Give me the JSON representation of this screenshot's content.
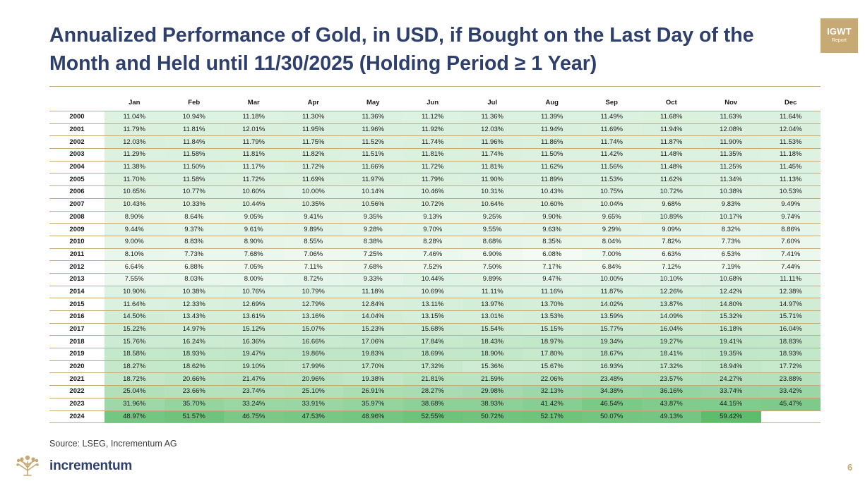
{
  "header": {
    "title": "Annualized Performance of Gold, in USD, if Bought on the Last Day of the Month and Held until 11/30/2025 (Holding Period ≥ 1 Year)",
    "badge_main": "IGWT",
    "badge_sub": "Report"
  },
  "footer": {
    "source": "Source: LSEG, Incrementum AG",
    "brand": "incrementum",
    "page_number": "6"
  },
  "colors": {
    "accent_gold": "#c6a973",
    "title_navy": "#2e3f6b",
    "scale_low": "#f4fbf5",
    "scale_high": "#5cbd6c"
  },
  "chart_data": {
    "type": "heatmap",
    "title": "Annualized Performance of Gold, in USD, if Bought on the Last Day of the Month and Held until 11/30/2025 (Holding Period ≥ 1 Year)",
    "columns": [
      "Jan",
      "Feb",
      "Mar",
      "Apr",
      "May",
      "Jun",
      "Jul",
      "Aug",
      "Sep",
      "Oct",
      "Nov",
      "Dec"
    ],
    "rows": [
      {
        "year": "2000",
        "values": [
          "11.04%",
          "10.94%",
          "11.18%",
          "11.30%",
          "11.36%",
          "11.12%",
          "11.36%",
          "11.39%",
          "11.49%",
          "11.68%",
          "11.63%",
          "11.64%"
        ]
      },
      {
        "year": "2001",
        "values": [
          "11.79%",
          "11.81%",
          "12.01%",
          "11.95%",
          "11.96%",
          "11.92%",
          "12.03%",
          "11.94%",
          "11.69%",
          "11.94%",
          "12.08%",
          "12.04%"
        ]
      },
      {
        "year": "2002",
        "values": [
          "12.03%",
          "11.84%",
          "11.79%",
          "11.75%",
          "11.52%",
          "11.74%",
          "11.96%",
          "11.86%",
          "11.74%",
          "11.87%",
          "11.90%",
          "11.53%"
        ]
      },
      {
        "year": "2003",
        "values": [
          "11.29%",
          "11.58%",
          "11.81%",
          "11.82%",
          "11.51%",
          "11.81%",
          "11.74%",
          "11.50%",
          "11.42%",
          "11.48%",
          "11.35%",
          "11.18%"
        ]
      },
      {
        "year": "2004",
        "values": [
          "11.38%",
          "11.50%",
          "11.17%",
          "11.72%",
          "11.66%",
          "11.72%",
          "11.81%",
          "11.62%",
          "11.56%",
          "11.48%",
          "11.25%",
          "11.45%"
        ]
      },
      {
        "year": "2005",
        "values": [
          "11.70%",
          "11.58%",
          "11.72%",
          "11.69%",
          "11.97%",
          "11.79%",
          "11.90%",
          "11.89%",
          "11.53%",
          "11.62%",
          "11.34%",
          "11.13%"
        ]
      },
      {
        "year": "2006",
        "values": [
          "10.65%",
          "10.77%",
          "10.60%",
          "10.00%",
          "10.14%",
          "10.46%",
          "10.31%",
          "10.43%",
          "10.75%",
          "10.72%",
          "10.38%",
          "10.53%"
        ]
      },
      {
        "year": "2007",
        "values": [
          "10.43%",
          "10.33%",
          "10.44%",
          "10.35%",
          "10.56%",
          "10.72%",
          "10.64%",
          "10.60%",
          "10.04%",
          "9.68%",
          "9.83%",
          "9.49%"
        ]
      },
      {
        "year": "2008",
        "values": [
          "8.90%",
          "8.64%",
          "9.05%",
          "9.41%",
          "9.35%",
          "9.13%",
          "9.25%",
          "9.90%",
          "9.65%",
          "10.89%",
          "10.17%",
          "9.74%"
        ]
      },
      {
        "year": "2009",
        "values": [
          "9.44%",
          "9.37%",
          "9.61%",
          "9.89%",
          "9.28%",
          "9.70%",
          "9.55%",
          "9.63%",
          "9.29%",
          "9.09%",
          "8.32%",
          "8.86%"
        ]
      },
      {
        "year": "2010",
        "values": [
          "9.00%",
          "8.83%",
          "8.90%",
          "8.55%",
          "8.38%",
          "8.28%",
          "8.68%",
          "8.35%",
          "8.04%",
          "7.82%",
          "7.73%",
          "7.60%"
        ]
      },
      {
        "year": "2011",
        "values": [
          "8.10%",
          "7.73%",
          "7.68%",
          "7.06%",
          "7.25%",
          "7.46%",
          "6.90%",
          "6.08%",
          "7.00%",
          "6.63%",
          "6.53%",
          "7.41%"
        ]
      },
      {
        "year": "2012",
        "values": [
          "6.64%",
          "6.88%",
          "7.05%",
          "7.11%",
          "7.68%",
          "7.52%",
          "7.50%",
          "7.17%",
          "6.84%",
          "7.12%",
          "7.19%",
          "7.44%"
        ]
      },
      {
        "year": "2013",
        "values": [
          "7.55%",
          "8.03%",
          "8.00%",
          "8.72%",
          "9.33%",
          "10.44%",
          "9.89%",
          "9.47%",
          "10.00%",
          "10.10%",
          "10.68%",
          "11.11%"
        ]
      },
      {
        "year": "2014",
        "values": [
          "10.90%",
          "10.38%",
          "10.76%",
          "10.79%",
          "11.18%",
          "10.69%",
          "11.11%",
          "11.16%",
          "11.87%",
          "12.26%",
          "12.42%",
          "12.38%"
        ]
      },
      {
        "year": "2015",
        "values": [
          "11.64%",
          "12.33%",
          "12.69%",
          "12.79%",
          "12.84%",
          "13.11%",
          "13.97%",
          "13.70%",
          "14.02%",
          "13.87%",
          "14.80%",
          "14.97%"
        ]
      },
      {
        "year": "2016",
        "values": [
          "14.50%",
          "13.43%",
          "13.61%",
          "13.16%",
          "14.04%",
          "13.15%",
          "13.01%",
          "13.53%",
          "13.59%",
          "14.09%",
          "15.32%",
          "15.71%"
        ]
      },
      {
        "year": "2017",
        "values": [
          "15.22%",
          "14.97%",
          "15.12%",
          "15.07%",
          "15.23%",
          "15.68%",
          "15.54%",
          "15.15%",
          "15.77%",
          "16.04%",
          "16.18%",
          "16.04%"
        ]
      },
      {
        "year": "2018",
        "values": [
          "15.76%",
          "16.24%",
          "16.36%",
          "16.66%",
          "17.06%",
          "17.84%",
          "18.43%",
          "18.97%",
          "19.34%",
          "19.27%",
          "19.41%",
          "18.83%"
        ]
      },
      {
        "year": "2019",
        "values": [
          "18.58%",
          "18.93%",
          "19.47%",
          "19.86%",
          "19.83%",
          "18.69%",
          "18.90%",
          "17.80%",
          "18.67%",
          "18.41%",
          "19.35%",
          "18.93%"
        ]
      },
      {
        "year": "2020",
        "values": [
          "18.27%",
          "18.62%",
          "19.10%",
          "17.99%",
          "17.70%",
          "17.32%",
          "15.36%",
          "15.67%",
          "16.93%",
          "17.32%",
          "18.94%",
          "17.72%"
        ]
      },
      {
        "year": "2021",
        "values": [
          "18.72%",
          "20.66%",
          "21.47%",
          "20.96%",
          "19.38%",
          "21.81%",
          "21.59%",
          "22.06%",
          "23.48%",
          "23.57%",
          "24.27%",
          "23.88%"
        ]
      },
      {
        "year": "2022",
        "values": [
          "25.04%",
          "23.66%",
          "23.74%",
          "25.10%",
          "26.91%",
          "28.27%",
          "29.98%",
          "32.13%",
          "34.38%",
          "36.16%",
          "33.74%",
          "33.42%"
        ]
      },
      {
        "year": "2023",
        "values": [
          "31.96%",
          "35.70%",
          "33.24%",
          "33.91%",
          "35.97%",
          "38.68%",
          "38.93%",
          "41.42%",
          "46.54%",
          "43.87%",
          "44.15%",
          "45.47%"
        ]
      },
      {
        "year": "2024",
        "values": [
          "48.97%",
          "51.57%",
          "46.75%",
          "47.53%",
          "48.96%",
          "52.55%",
          "50.72%",
          "52.17%",
          "50.07%",
          "49.13%",
          "59.42%",
          ""
        ]
      }
    ]
  }
}
